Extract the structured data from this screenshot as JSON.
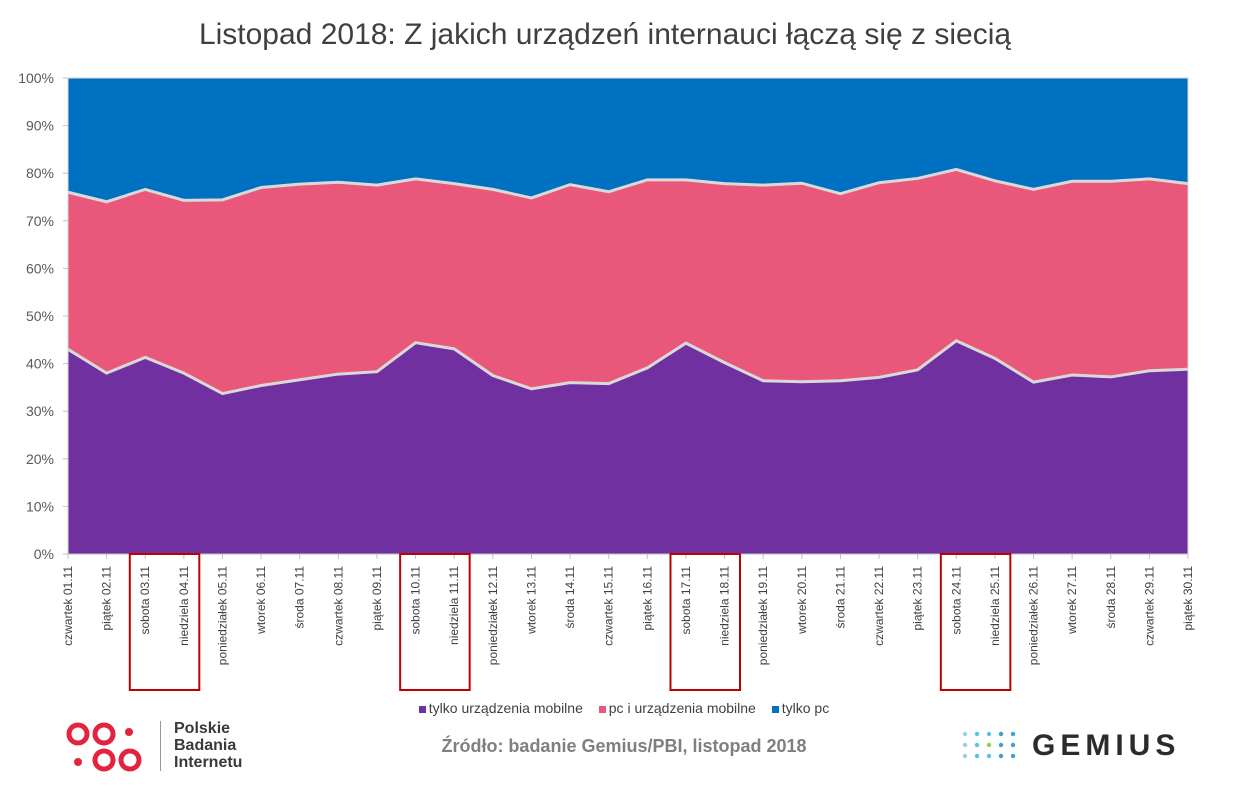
{
  "title": "Listopad 2018: Z jakich urządzeń internauci łączą się z siecią",
  "source": "Źródło: badanie Gemius/PBI, listopad 2018",
  "logos": {
    "pbi_lines": [
      "Polskie",
      "Badania",
      "Internetu"
    ],
    "gemius": "GEMIUS"
  },
  "colors": {
    "mobile": "#7030a0",
    "pc_mobile": "#e9587b",
    "pc": "#0070c0",
    "separator": "#d9d9d9",
    "highlight_box": "#c00000",
    "pbi_red": "#e2243f",
    "gemius_dots": [
      "#5bc0eb",
      "#3d9fd9",
      "#8fd14f"
    ]
  },
  "chart_data": {
    "type": "area",
    "stacked_percent": true,
    "categories": [
      "czwartek 01.11",
      "piątek 02.11",
      "sobota 03.11",
      "niedziela 04.11",
      "poniedziałek 05.11",
      "wtorek 06.11",
      "środa 07.11",
      "czwartek 08.11",
      "piątek 09.11",
      "sobota 10.11",
      "niedziela 11.11",
      "poniedziałek 12.11",
      "wtorek 13.11",
      "środa 14.11",
      "czwartek 15.11",
      "piątek 16.11",
      "sobota 17.11",
      "niedziela 18.11",
      "poniedziałek 19.11",
      "wtorek 20.11",
      "środa 21.11",
      "czwartek 22.11",
      "piątek 23.11",
      "sobota 24.11",
      "niedziela 25.11",
      "poniedziałek 26.11",
      "wtorek 27.11",
      "środa 28.11",
      "czwartek 29.11",
      "piątek 30.11"
    ],
    "series": [
      {
        "name": "tylko urządzenia mobilne",
        "color": "#7030a0",
        "values": [
          43.0,
          38.0,
          41.3,
          38.0,
          33.7,
          35.4,
          36.6,
          37.8,
          38.3,
          44.4,
          43.1,
          37.5,
          34.7,
          36.0,
          35.8,
          39.1,
          44.3,
          40.2,
          36.4,
          36.2,
          36.4,
          37.1,
          38.7,
          44.8,
          41.1,
          36.1,
          37.6,
          37.2,
          38.5,
          38.8
        ]
      },
      {
        "name": "pc i urządzenia mobilne",
        "color": "#e9587b",
        "values": [
          33.0,
          36.0,
          35.3,
          36.3,
          40.7,
          41.6,
          41.1,
          40.3,
          39.2,
          34.4,
          34.7,
          39.1,
          40.1,
          41.6,
          40.3,
          39.5,
          34.3,
          37.6,
          41.1,
          41.7,
          39.3,
          40.9,
          40.2,
          36.0,
          37.3,
          40.5,
          40.7,
          41.1,
          40.3,
          39.0
        ]
      },
      {
        "name": "tylko pc",
        "color": "#0070c0",
        "values": [
          24.0,
          26.0,
          23.4,
          25.7,
          25.6,
          23.0,
          22.3,
          21.9,
          22.5,
          21.2,
          22.2,
          23.4,
          25.2,
          22.4,
          23.9,
          21.4,
          21.4,
          22.2,
          22.5,
          22.1,
          24.3,
          22.0,
          21.1,
          19.2,
          21.6,
          23.4,
          21.7,
          21.7,
          21.2,
          22.2
        ]
      }
    ],
    "ylim": [
      0,
      100
    ],
    "yticks": [
      "0%",
      "10%",
      "20%",
      "30%",
      "40%",
      "50%",
      "60%",
      "70%",
      "80%",
      "90%",
      "100%"
    ],
    "highlighted_categories": [
      [
        "sobota 03.11",
        "niedziela 04.11"
      ],
      [
        "sobota 10.11",
        "niedziela 11.11"
      ],
      [
        "sobota 17.11",
        "niedziela 18.11"
      ],
      [
        "sobota 24.11",
        "niedziela 25.11"
      ]
    ],
    "legend": [
      "tylko urządzenia mobilne",
      "pc i urządzenia mobilne",
      "tylko pc"
    ],
    "legend_position": "bottom",
    "grid": false
  }
}
